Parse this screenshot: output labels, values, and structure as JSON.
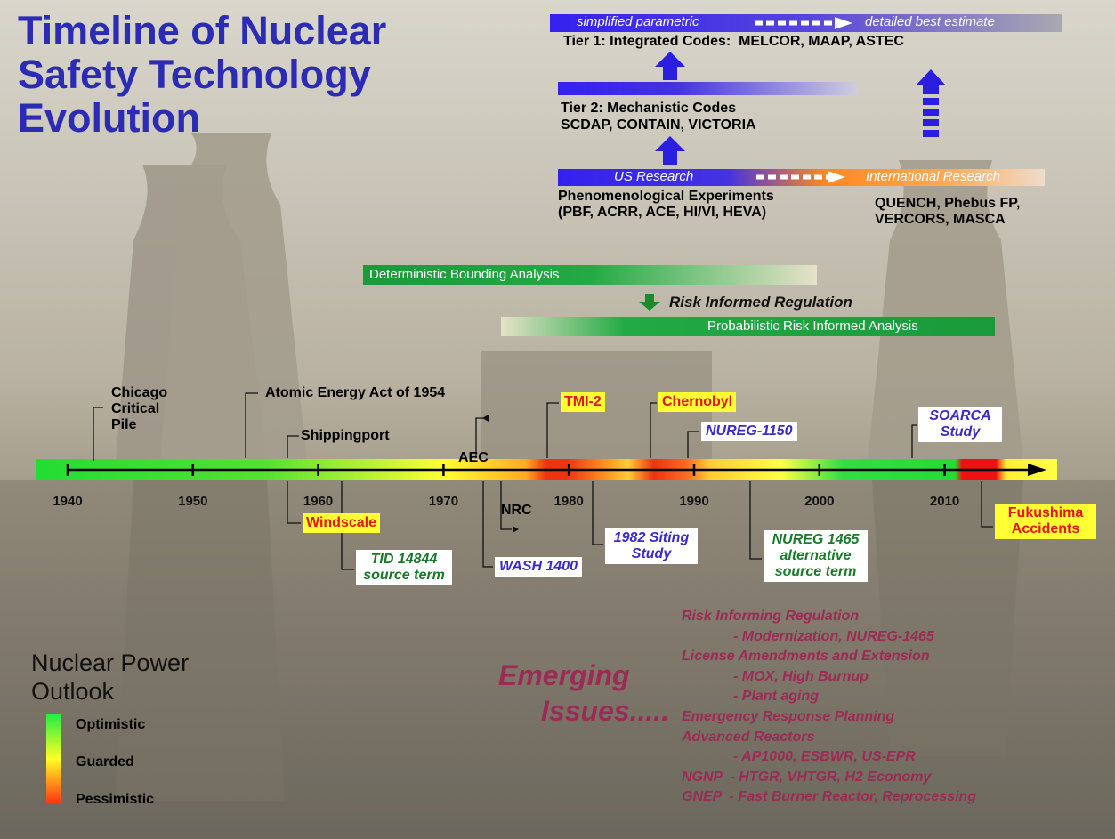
{
  "title": [
    "Timeline of Nuclear",
    "Safety Technology",
    "Evolution"
  ],
  "tiers": {
    "top_bar": {
      "left": "simplified parametric",
      "right": "detailed best estimate"
    },
    "tier1": "Tier 1: Integrated Codes:  MELCOR, MAAP, ASTEC",
    "tier2": [
      "Tier 2: Mechanistic Codes",
      "SCDAP, CONTAIN, VICTORIA"
    ],
    "research_bar": {
      "left": "US Research",
      "right": "International Research"
    },
    "experiments": [
      "Phenomenological Experiments",
      "(PBF, ACRR, ACE, HI/VI, HEVA)"
    ],
    "international": [
      "QUENCH, Phebus FP,",
      "VERCORS, MASCA"
    ]
  },
  "regulation": {
    "deterministic": "Deterministic Bounding Analysis",
    "transition": "Risk Informed Regulation",
    "probabilistic": "Probabilistic Risk Informed Analysis"
  },
  "timeline": {
    "years": [
      1940,
      1950,
      1960,
      1970,
      1980,
      1990,
      2000,
      2010
    ],
    "above": [
      [
        "Chicago",
        "Critical",
        "Pile"
      ],
      [
        "Atomic Energy Act of 1954"
      ],
      [
        "Shippingport"
      ],
      [
        "AEC"
      ],
      [
        "TMI-2"
      ],
      [
        "Chernobyl"
      ],
      [
        "NUREG-1150"
      ],
      [
        "SOARCA",
        "Study"
      ]
    ],
    "below": [
      [
        "Windscale"
      ],
      [
        "TID 14844",
        "source term"
      ],
      [
        "NRC"
      ],
      [
        "WASH 1400"
      ],
      [
        "1982 Siting",
        "Study"
      ],
      [
        "NUREG 1465",
        "alternative",
        "source term"
      ],
      [
        "Fukushima",
        "Accidents"
      ]
    ]
  },
  "legend": {
    "title": [
      "Nuclear Power",
      "Outlook"
    ],
    "items": [
      "Optimistic",
      "Guarded",
      "Pessimistic"
    ]
  },
  "emerging": {
    "title": [
      "Emerging",
      "Issues....."
    ],
    "issues": [
      "Risk Informing Regulation",
      "- Modernization, NUREG-1465",
      "License Amendments and Extension",
      "- MOX, High Burnup",
      "- Plant aging",
      "Emergency Response Planning",
      "Advanced Reactors",
      "- AP1000, ESBWR, US-EPR",
      "NGNP  - HTGR, VHTGR, H2 Economy",
      "GNEP  - Fast Burner Reactor, Reprocessing"
    ]
  }
}
